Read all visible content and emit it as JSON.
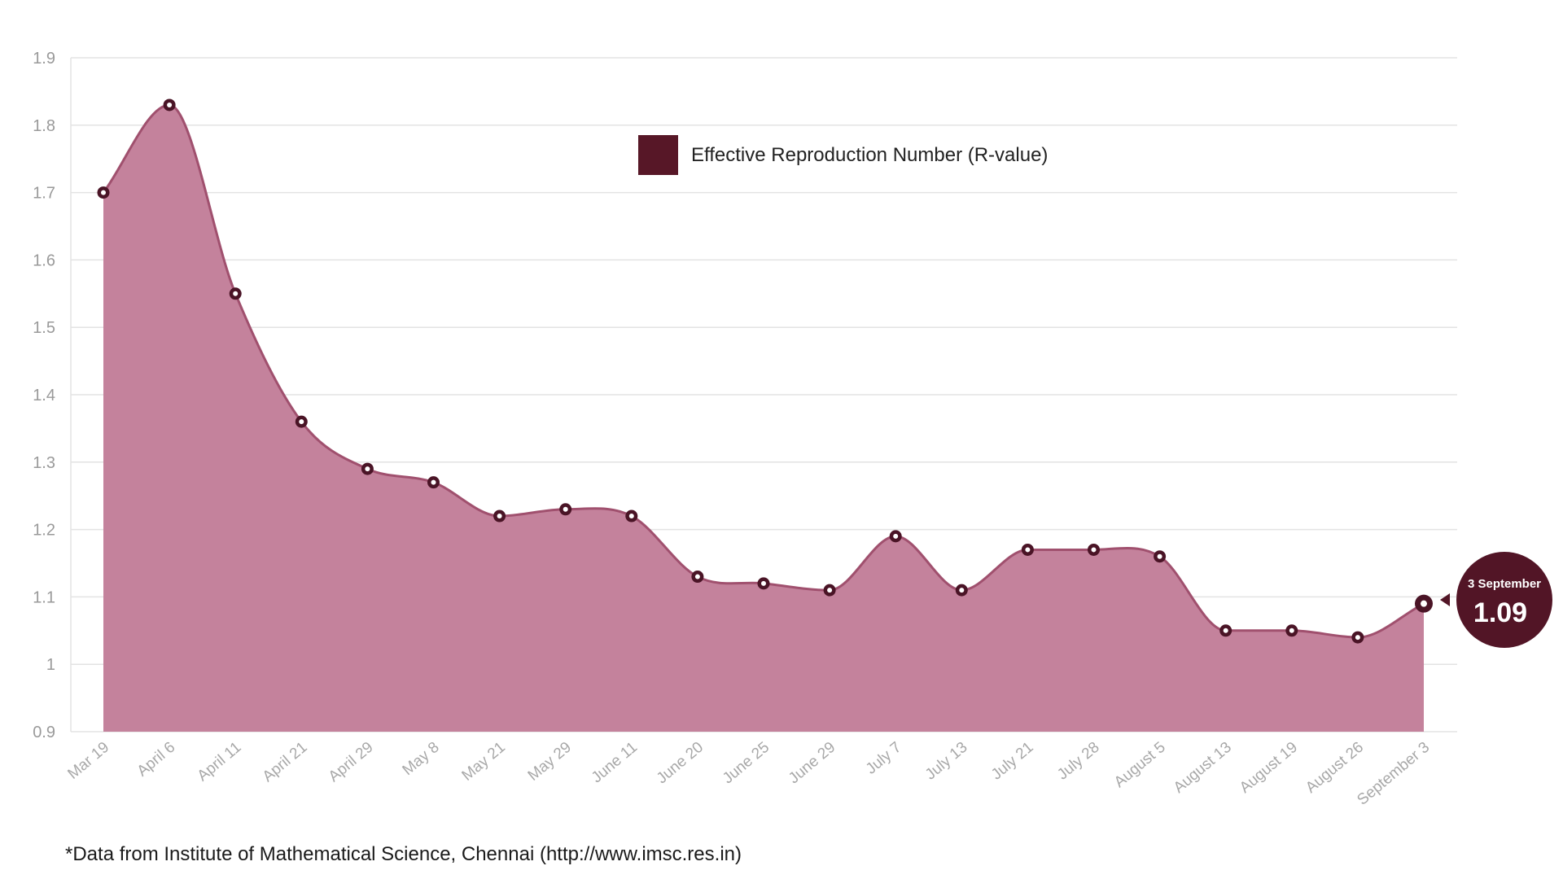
{
  "chart_data": {
    "type": "area",
    "title": "",
    "xlabel": "",
    "ylabel": "",
    "categories": [
      "Mar 19",
      "April 6",
      "April 11",
      "April 21",
      "April 29",
      "May 8",
      "May 21",
      "May 29",
      "June 11",
      "June 20",
      "June 25",
      "June 29",
      "July 7",
      "July 13",
      "July 21",
      "July 28",
      "August 5",
      "August 13",
      "August 19",
      "August 26",
      "September 3"
    ],
    "series": [
      {
        "name": "Effective Reproduction Number (R-value)",
        "values": [
          1.7,
          1.83,
          1.55,
          1.36,
          1.29,
          1.27,
          1.22,
          1.23,
          1.22,
          1.13,
          1.12,
          1.11,
          1.19,
          1.11,
          1.17,
          1.17,
          1.16,
          1.05,
          1.05,
          1.04,
          1.09
        ]
      }
    ],
    "ylim": [
      0.9,
      1.9
    ],
    "yticks": [
      "0.9",
      "1",
      "1.1",
      "1.2",
      "1.3",
      "1.4",
      "1.5",
      "1.6",
      "1.7",
      "1.8",
      "1.9"
    ],
    "grid": true,
    "legend_position": "top-center",
    "colors": {
      "area": "#c4829c",
      "line": "#a0506e",
      "marker": "#4a1426",
      "legend_swatch": "#571727",
      "callout": "#521526"
    },
    "annotation": {
      "label": "3 September",
      "value": "1.09"
    }
  },
  "footnote": "*Data from Institute of Mathematical Science, Chennai (http://www.imsc.res.in)"
}
